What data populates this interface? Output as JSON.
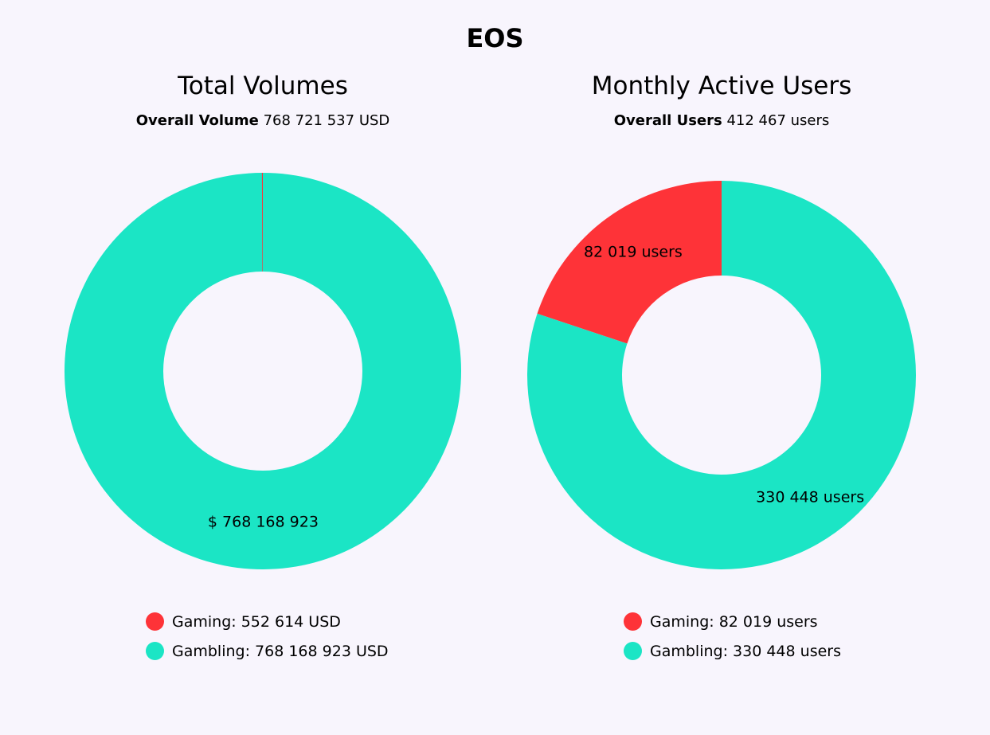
{
  "page": {
    "title": "EOS"
  },
  "colors": {
    "background": "#f8f5fd",
    "gaming": "#fe3338",
    "gambling": "#1be5c5"
  },
  "chart_data": [
    {
      "type": "pie",
      "variant": "donut",
      "title": "Total Volumes",
      "summary_label": "Overall Volume",
      "summary_value": "768 721 537 USD",
      "categories": [
        "Gaming",
        "Gambling"
      ],
      "values": [
        552614,
        768168923
      ],
      "colors": [
        "#fe3338",
        "#1be5c5"
      ],
      "slice_labels": [
        "",
        "$ 768 168 923"
      ],
      "legend": [
        "Gaming: 552 614 USD",
        "Gambling: 768 168 923 USD"
      ],
      "legend_position": "bottom"
    },
    {
      "type": "pie",
      "variant": "donut",
      "title": "Monthly Active Users",
      "summary_label": "Overall Users",
      "summary_value": "412 467 users",
      "categories": [
        "Gaming",
        "Gambling"
      ],
      "values": [
        82019,
        330448
      ],
      "colors": [
        "#fe3338",
        "#1be5c5"
      ],
      "slice_labels": [
        "82 019 users",
        "330 448 users"
      ],
      "legend": [
        "Gaming: 82 019 users",
        "Gambling: 330 448 users"
      ],
      "legend_position": "bottom"
    }
  ]
}
